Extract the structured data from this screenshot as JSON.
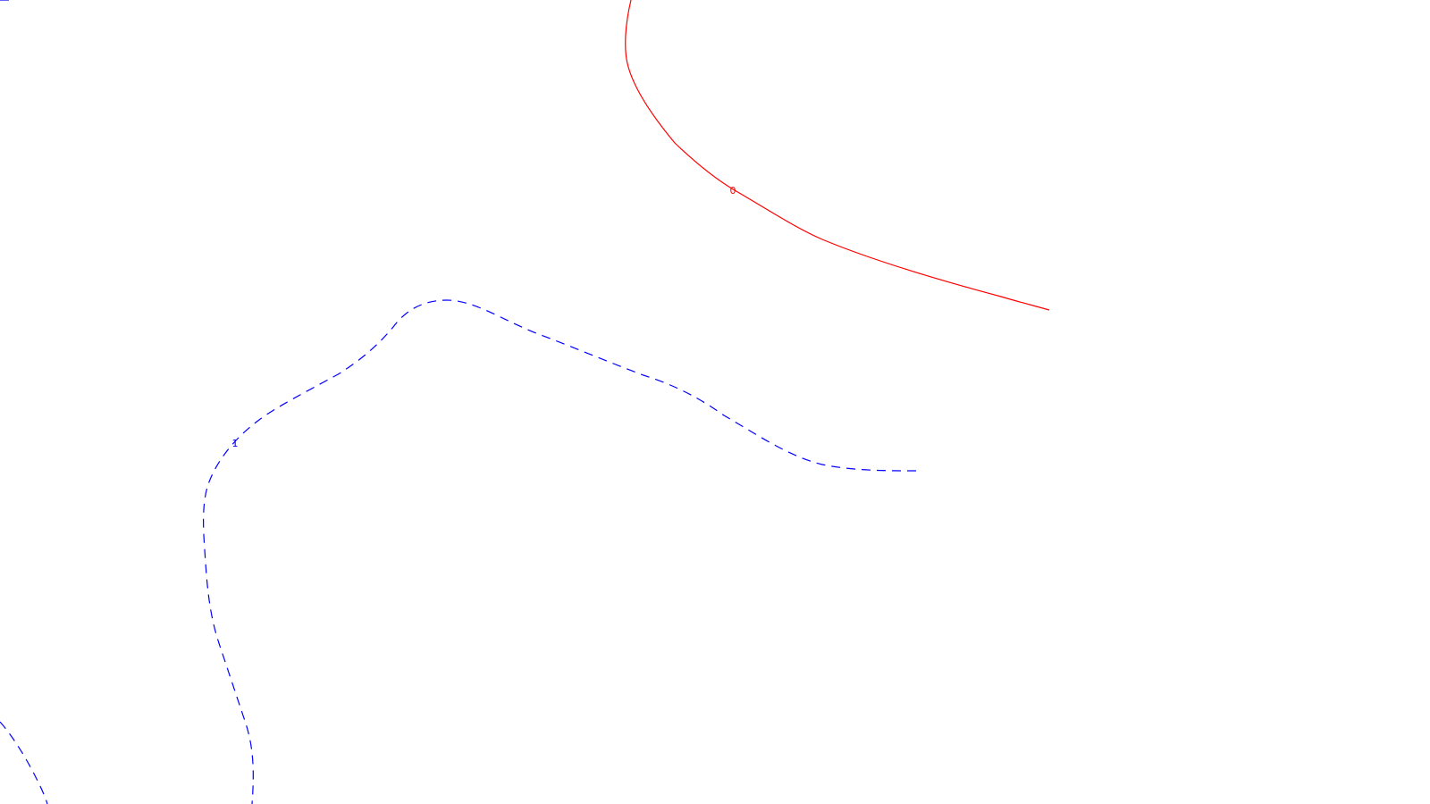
{
  "map": {
    "contours": [
      {
        "id": "contour-0",
        "label": "0",
        "color": "#ff0000",
        "line_style": "solid"
      },
      {
        "id": "contour-1",
        "label": "1",
        "color": "#0000ff",
        "line_style": "dashed"
      }
    ]
  }
}
